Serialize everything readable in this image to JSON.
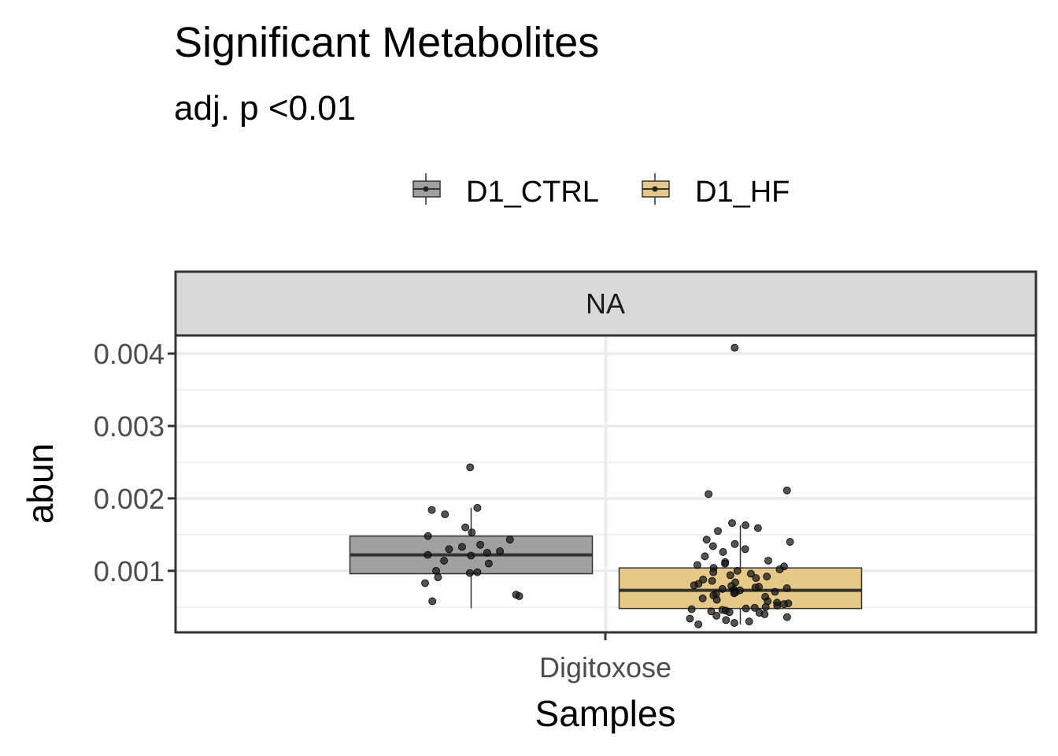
{
  "chart_data": {
    "type": "boxplot",
    "title": "Significant Metabolites",
    "subtitle": "adj. p <0.01",
    "facet_label": "NA",
    "xlabel": "Samples",
    "ylabel": "abun",
    "categories": [
      "Digitoxose"
    ],
    "yticks": [
      "0.001",
      "0.002",
      "0.003",
      "0.004"
    ],
    "ytick_values": [
      0.001,
      0.002,
      0.003,
      0.004
    ],
    "ylim": [
      0.00015,
      0.00425
    ],
    "grid": true,
    "legend_position": "top",
    "series": [
      {
        "name": "D1_CTRL",
        "color": "#a0a0a0",
        "box": {
          "q1": 0.00096,
          "median": 0.00122,
          "q3": 0.00148,
          "whisker_low": 0.00048,
          "whisker_high": 0.00187
        },
        "points": [
          0.00243,
          0.00187,
          0.00184,
          0.00178,
          0.0016,
          0.00153,
          0.00148,
          0.00143,
          0.00136,
          0.00133,
          0.0013,
          0.00127,
          0.00125,
          0.00122,
          0.00121,
          0.00114,
          0.0011,
          0.001,
          0.00098,
          0.00097,
          0.00091,
          0.00083,
          0.00067,
          0.00065,
          0.00058
        ]
      },
      {
        "name": "D1_HF",
        "color": "#e6c987",
        "box": {
          "q1": 0.00048,
          "median": 0.00073,
          "q3": 0.00104,
          "whisker_low": 0.00026,
          "whisker_high": 0.00163
        },
        "points": [
          0.00408,
          0.00211,
          0.00206,
          0.00166,
          0.00163,
          0.00159,
          0.00155,
          0.00143,
          0.0014,
          0.00137,
          0.00134,
          0.0013,
          0.00126,
          0.0012,
          0.00114,
          0.00112,
          0.0011,
          0.00108,
          0.00106,
          0.00104,
          0.00102,
          0.001,
          0.00098,
          0.00096,
          0.00094,
          0.00092,
          0.0009,
          0.00088,
          0.00086,
          0.00084,
          0.00082,
          0.0008,
          0.00079,
          0.00078,
          0.00077,
          0.00076,
          0.00075,
          0.00074,
          0.00073,
          0.00072,
          0.00071,
          0.0007,
          0.00069,
          0.00068,
          0.00066,
          0.00064,
          0.00062,
          0.0006,
          0.00058,
          0.00056,
          0.00055,
          0.00054,
          0.00052,
          0.0005,
          0.00049,
          0.00048,
          0.00047,
          0.00046,
          0.00045,
          0.00044,
          0.00043,
          0.00042,
          0.0004,
          0.00038,
          0.00036,
          0.00034,
          0.00032,
          0.0003,
          0.00028,
          0.00026
        ]
      }
    ]
  }
}
